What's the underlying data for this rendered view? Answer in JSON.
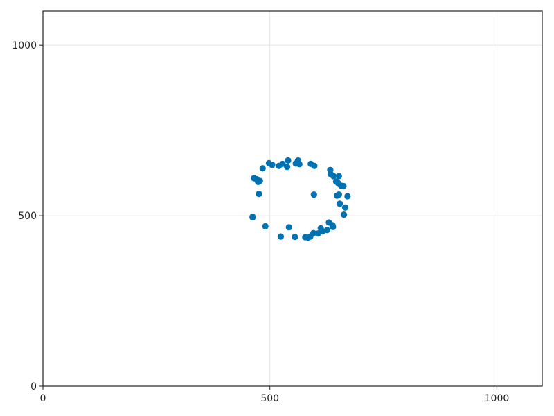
{
  "chart_data": {
    "type": "scatter",
    "title": "",
    "xlabel": "",
    "ylabel": "",
    "xlim": [
      0,
      1100
    ],
    "ylim": [
      0,
      1100
    ],
    "xticks": [
      0,
      500,
      1000
    ],
    "yticks": [
      0,
      500,
      1000
    ],
    "xtick_labels": [
      "0",
      "500",
      "1000"
    ],
    "ytick_labels": [
      "0",
      "500",
      "1000"
    ],
    "grid": true,
    "marker_color": "#0072b2",
    "series": [
      {
        "points": [
          [
            462,
            495
          ],
          [
            462,
            497
          ],
          [
            465,
            610
          ],
          [
            471,
            607
          ],
          [
            474,
            599
          ],
          [
            476,
            564
          ],
          [
            478,
            602
          ],
          [
            484,
            639
          ],
          [
            490,
            469
          ],
          [
            498,
            654
          ],
          [
            505,
            649
          ],
          [
            520,
            646
          ],
          [
            524,
            439
          ],
          [
            528,
            652
          ],
          [
            538,
            643
          ],
          [
            540,
            662
          ],
          [
            542,
            466
          ],
          [
            555,
            438
          ],
          [
            557,
            653
          ],
          [
            562,
            662
          ],
          [
            565,
            651
          ],
          [
            578,
            437
          ],
          [
            584,
            436
          ],
          [
            589,
            439
          ],
          [
            590,
            652
          ],
          [
            596,
            449
          ],
          [
            597,
            562
          ],
          [
            598,
            646
          ],
          [
            606,
            448
          ],
          [
            612,
            463
          ],
          [
            616,
            454
          ],
          [
            626,
            458
          ],
          [
            630,
            480
          ],
          [
            633,
            634
          ],
          [
            634,
            622
          ],
          [
            638,
            472
          ],
          [
            639,
            467
          ],
          [
            640,
            616
          ],
          [
            646,
            600
          ],
          [
            652,
            616
          ],
          [
            648,
            559
          ],
          [
            652,
            562
          ],
          [
            650,
            596
          ],
          [
            654,
            535
          ],
          [
            657,
            588
          ],
          [
            662,
            587
          ],
          [
            663,
            503
          ],
          [
            666,
            524
          ],
          [
            671,
            557
          ]
        ]
      }
    ]
  }
}
